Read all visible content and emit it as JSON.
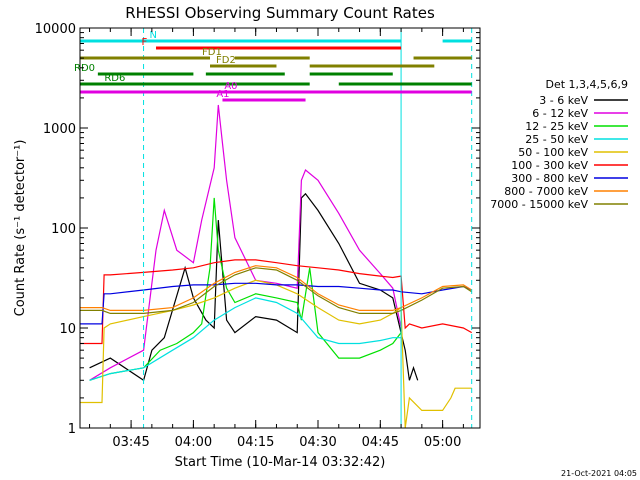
{
  "chart_data": {
    "type": "line",
    "title": "RHESSI Observing Summary Count Rates",
    "xlabel": "Start Time (10-Mar-14 03:32:42)",
    "ylabel": "Count Rate (s⁻¹ detector⁻¹)",
    "footer": "21-Oct-2021 04:05",
    "y_scale": "log",
    "ylim": [
      1,
      10000
    ],
    "xlim": [
      "03:32:42",
      "05:09:00"
    ],
    "x_ticks": [
      "03:45",
      "04:00",
      "04:15",
      "04:30",
      "04:45",
      "05:00"
    ],
    "y_ticks": [
      "1",
      "10",
      "100",
      "1000",
      "10000"
    ],
    "legend_title": "Det 1,3,4,5,6,9",
    "legend_placement": "right",
    "series": [
      {
        "name": "3 - 6 keV",
        "color": "#000000",
        "x": [
          "03:35",
          "03:40",
          "03:48",
          "03:50",
          "03:53",
          "03:58",
          "04:00",
          "04:03",
          "04:05",
          "04:06",
          "04:08",
          "04:10",
          "04:15",
          "04:20",
          "04:25",
          "04:26",
          "04:27",
          "04:30",
          "04:35",
          "04:40",
          "04:45",
          "04:48",
          "04:51",
          "04:52",
          "04:53",
          "04:54"
        ],
        "y": [
          4,
          5,
          3,
          6,
          8,
          40,
          20,
          12,
          10,
          120,
          12,
          9,
          13,
          12,
          9,
          200,
          220,
          150,
          70,
          28,
          24,
          20,
          6,
          3,
          4,
          3
        ]
      },
      {
        "name": "6 - 12 keV",
        "color": "#e000e0",
        "x": [
          "03:35",
          "03:40",
          "03:48",
          "03:51",
          "03:53",
          "03:56",
          "04:00",
          "04:02",
          "04:05",
          "04:06",
          "04:07",
          "04:08",
          "04:10",
          "04:15",
          "04:20",
          "04:25",
          "04:26",
          "04:27",
          "04:30",
          "04:35",
          "04:40",
          "04:45",
          "04:48",
          "04:50"
        ],
        "y": [
          3,
          4,
          6,
          60,
          150,
          60,
          45,
          120,
          400,
          1700,
          700,
          300,
          80,
          30,
          28,
          25,
          300,
          380,
          300,
          140,
          60,
          35,
          25,
          10
        ]
      },
      {
        "name": "12 - 25 keV",
        "color": "#00e000",
        "x": [
          "03:35",
          "03:40",
          "03:48",
          "03:52",
          "03:56",
          "04:00",
          "04:02",
          "04:04",
          "04:05",
          "04:06",
          "04:08",
          "04:10",
          "04:15",
          "04:20",
          "04:25",
          "04:26",
          "04:28",
          "04:30",
          "04:35",
          "04:40",
          "04:45",
          "04:48",
          "04:50"
        ],
        "y": [
          3,
          3.5,
          4,
          6,
          7,
          9,
          11,
          40,
          200,
          60,
          25,
          18,
          22,
          20,
          18,
          12,
          40,
          9,
          5,
          5,
          6,
          7,
          9
        ]
      },
      {
        "name": "25 - 50 keV",
        "color": "#00e0e0",
        "x": [
          "03:35",
          "03:40",
          "03:48",
          "03:55",
          "04:00",
          "04:05",
          "04:10",
          "04:15",
          "04:20",
          "04:25",
          "04:28",
          "04:30",
          "04:35",
          "04:40",
          "04:45",
          "04:48",
          "04:50"
        ],
        "y": [
          3,
          3.5,
          4,
          6,
          8,
          12,
          16,
          20,
          18,
          14,
          10,
          8,
          7,
          7,
          7.5,
          8,
          8
        ]
      },
      {
        "name": "50 - 100 keV",
        "color": "#e0c000",
        "x": [
          "03:32:42",
          "03:38",
          "03:38:30",
          "03:40",
          "03:48",
          "03:55",
          "04:00",
          "04:05",
          "04:10",
          "04:15",
          "04:20",
          "04:25",
          "04:30",
          "04:35",
          "04:40",
          "04:45",
          "04:48",
          "04:50",
          "04:51",
          "04:52",
          "04:55",
          "05:00",
          "05:02",
          "05:03",
          "05:05",
          "05:07"
        ],
        "y": [
          1.8,
          1.8,
          10,
          11,
          13,
          15,
          17,
          20,
          25,
          30,
          27,
          22,
          16,
          12,
          11,
          12,
          14,
          16,
          1,
          2,
          1.5,
          1.5,
          2,
          2.5,
          2.5,
          2.5
        ]
      },
      {
        "name": "100 - 300 keV",
        "color": "#ff0000",
        "x": [
          "03:32:42",
          "03:38",
          "03:38:30",
          "03:40",
          "03:48",
          "03:55",
          "04:00",
          "04:05",
          "04:10",
          "04:15",
          "04:20",
          "04:25",
          "04:30",
          "04:35",
          "04:40",
          "04:45",
          "04:48",
          "04:50",
          "04:51",
          "04:52",
          "04:55",
          "05:00",
          "05:05",
          "05:07"
        ],
        "y": [
          7,
          7,
          34,
          34,
          36,
          38,
          40,
          45,
          48,
          48,
          45,
          42,
          40,
          38,
          35,
          33,
          32,
          33,
          10,
          11,
          10,
          11,
          10,
          9
        ]
      },
      {
        "name": "300 - 800 keV",
        "color": "#0000e0",
        "x": [
          "03:32:42",
          "03:38",
          "03:38:30",
          "03:40",
          "03:48",
          "03:55",
          "04:00",
          "04:05",
          "04:10",
          "04:15",
          "04:20",
          "04:25",
          "04:30",
          "04:35",
          "04:40",
          "04:45",
          "04:48",
          "04:50",
          "04:55",
          "05:00",
          "05:05",
          "05:07"
        ],
        "y": [
          11,
          11,
          22,
          22,
          24,
          26,
          27,
          27,
          28,
          28,
          27,
          27,
          26,
          26,
          25,
          24,
          24,
          23,
          22,
          24,
          26,
          24
        ]
      },
      {
        "name": "800 - 7000 keV",
        "color": "#ff8000",
        "x": [
          "03:32:42",
          "03:38",
          "03:40",
          "03:48",
          "03:55",
          "04:00",
          "04:05",
          "04:10",
          "04:15",
          "04:20",
          "04:25",
          "04:30",
          "04:35",
          "04:40",
          "04:45",
          "04:48",
          "04:50",
          "04:55",
          "05:00",
          "05:05",
          "05:07"
        ],
        "y": [
          16,
          16,
          15,
          15,
          16,
          20,
          28,
          36,
          42,
          40,
          32,
          22,
          17,
          15,
          15,
          15,
          16,
          20,
          26,
          27,
          24
        ]
      },
      {
        "name": "7000 - 15000 keV",
        "color": "#808000",
        "x": [
          "03:32:42",
          "03:38",
          "03:40",
          "03:48",
          "03:55",
          "04:00",
          "04:05",
          "04:10",
          "04:15",
          "04:20",
          "04:25",
          "04:30",
          "04:35",
          "04:40",
          "04:45",
          "04:48",
          "04:50",
          "04:55",
          "05:00",
          "05:05",
          "05:07"
        ],
        "y": [
          15,
          15,
          14,
          14,
          15,
          18,
          26,
          34,
          40,
          38,
          30,
          21,
          16,
          14,
          14,
          14,
          15,
          19,
          25,
          26,
          23
        ]
      }
    ],
    "orbit_flags": [
      {
        "label": "N",
        "color": "#00e0e0",
        "segments": [
          [
            "03:32:42",
            "04:50"
          ],
          [
            "05:00",
            "05:07"
          ]
        ]
      },
      {
        "label": "F",
        "color": "#ff0000",
        "segments": [
          [
            "03:51",
            "04:50"
          ]
        ]
      },
      {
        "label": "FD1",
        "color": "#808000",
        "segments": [
          [
            "03:32:42",
            "04:04"
          ],
          [
            "04:10",
            "04:28"
          ],
          [
            "04:53",
            "05:07"
          ]
        ]
      },
      {
        "label": "FD2",
        "color": "#808000",
        "segments": [
          [
            "04:04",
            "04:20"
          ],
          [
            "04:28",
            "04:58"
          ]
        ]
      },
      {
        "label": "RD0",
        "color": "#008000",
        "segments": [
          [
            "03:37",
            "04:00"
          ],
          [
            "04:03",
            "04:22"
          ],
          [
            "04:28",
            "04:48"
          ]
        ]
      },
      {
        "label": "RD6",
        "color": "#008000",
        "segments": [
          [
            "03:32:42",
            "04:28"
          ],
          [
            "04:35",
            "05:07"
          ]
        ]
      },
      {
        "label": "A0",
        "color": "#e000e0",
        "segments": [
          [
            "03:32:42",
            "05:07"
          ]
        ]
      },
      {
        "label": "A1",
        "color": "#e000e0",
        "segments": [
          [
            "04:07",
            "04:27"
          ]
        ]
      }
    ],
    "markers": [
      {
        "style": "solid",
        "color": "#00e0e0",
        "x": [
          "04:50"
        ]
      },
      {
        "style": "dashed",
        "color": "#00e0e0",
        "x": [
          "03:48",
          "05:07"
        ]
      }
    ]
  }
}
